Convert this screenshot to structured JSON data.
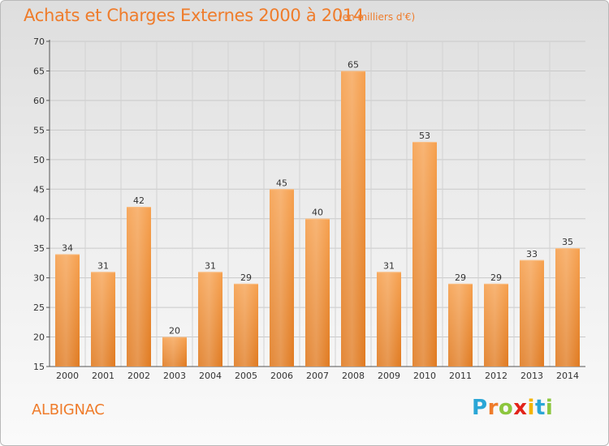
{
  "header": {
    "title": "Achats et Charges Externes 2000 à 2014",
    "subtitle": "(en milliers d'€)"
  },
  "footer": {
    "commune": "ALBIGNAC",
    "logo_text": "Proxiti",
    "logo_colors": [
      "#2aa6d6",
      "#ef7c2b",
      "#8cc63e",
      "#e2231a",
      "#f4b400",
      "#2aa6d6",
      "#8cc63e"
    ]
  },
  "colors": {
    "bar_top": "#f6a04e",
    "bar_bottom": "#e07a20",
    "accent": "#ef7c2b"
  },
  "chart_data": {
    "type": "bar",
    "title": "Achats et Charges Externes 2000 à 2014",
    "subtitle": "(en milliers d'€)",
    "categories": [
      "2000",
      "2001",
      "2002",
      "2003",
      "2004",
      "2005",
      "2006",
      "2007",
      "2008",
      "2009",
      "2010",
      "2011",
      "2012",
      "2013",
      "2014"
    ],
    "values": [
      34,
      31,
      42,
      20,
      31,
      29,
      45,
      40,
      65,
      31,
      53,
      29,
      29,
      33,
      35
    ],
    "ylim": [
      15,
      70
    ],
    "yticks": [
      15,
      20,
      25,
      30,
      35,
      40,
      45,
      50,
      55,
      60,
      65,
      70
    ],
    "grid": true,
    "data_labels": true
  }
}
